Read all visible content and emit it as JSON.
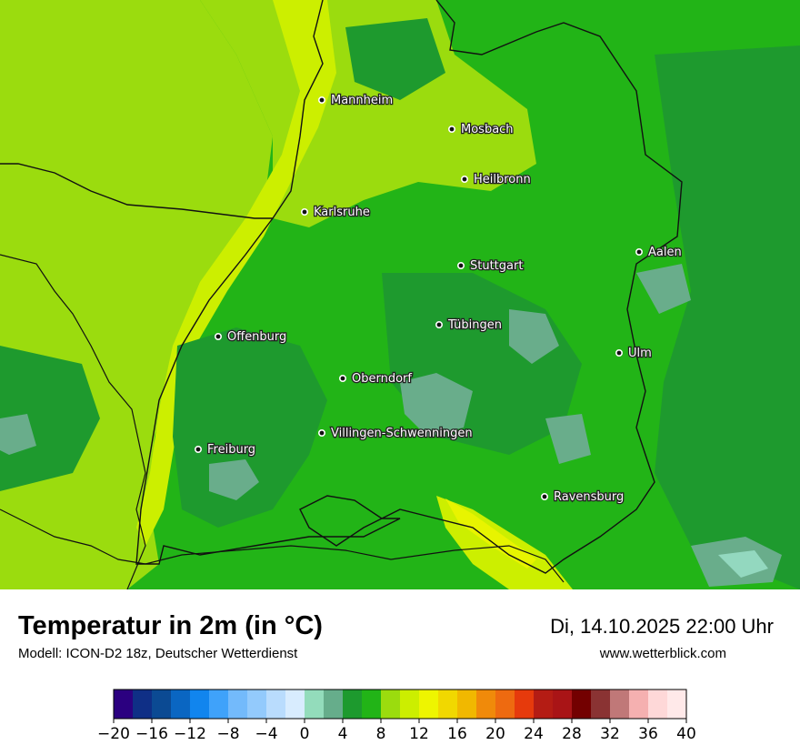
{
  "title": "Temperatur in 2m (in °C)",
  "subtitle": "Modell: ICON-D2 18z, Deutscher Wetterdienst",
  "datetime": "Di, 14.10.2025 22:00 Uhr",
  "source": "www.wetterblick.com",
  "colors": {
    "t4": "#69ad8b",
    "t6": "#1e9a2e",
    "t8": "#22b417",
    "t10": "#9bdc0e",
    "t12": "#ccef00",
    "t14": "#e8f400",
    "t2": "#93d8bf",
    "border": "#111111"
  },
  "cities": [
    {
      "name": "Mannheim"
    },
    {
      "name": "Mosbach"
    },
    {
      "name": "Heilbronn"
    },
    {
      "name": "Karlsruhe"
    },
    {
      "name": "Aalen"
    },
    {
      "name": "Stuttgart"
    },
    {
      "name": "Tübingen"
    },
    {
      "name": "Offenburg"
    },
    {
      "name": "Ulm"
    },
    {
      "name": "Oberndorf"
    },
    {
      "name": "Villingen-Schwenningen"
    },
    {
      "name": "Freiburg"
    },
    {
      "name": "Ravensburg"
    }
  ],
  "legend": {
    "unit": "°C",
    "min": -20,
    "max": 40,
    "step": 2,
    "colors": [
      "#2b0080",
      "#0f2f86",
      "#0b4a93",
      "#0a66c2",
      "#1185ee",
      "#3fa2fa",
      "#73bafb",
      "#93cafc",
      "#b9dcfd",
      "#d8ecfe",
      "#93dcbb",
      "#66ad8b",
      "#1d9a2e",
      "#22b417",
      "#9bdc0e",
      "#ccee00",
      "#eef500",
      "#f1d800",
      "#f1b800",
      "#f08a0a",
      "#ee6a10",
      "#e63a0c",
      "#b41c14",
      "#a91416",
      "#730000",
      "#8a3333",
      "#c07878",
      "#f5b0b0",
      "#fed8d8",
      "#ffe9e9"
    ],
    "tick_labels": [
      "−20",
      "−16",
      "−12",
      "−8",
      "−4",
      "0",
      "4",
      "8",
      "12",
      "16",
      "20",
      "24",
      "28",
      "32",
      "36",
      "40"
    ]
  }
}
